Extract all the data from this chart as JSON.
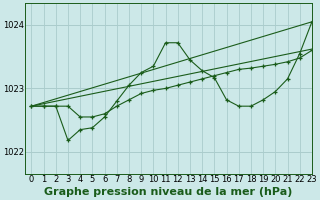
{
  "title": "Graphe pression niveau de la mer (hPa)",
  "background_color": "#cce8e8",
  "grid_color": "#aacccc",
  "line_color": "#1a5c1a",
  "xlim": [
    -0.5,
    23
  ],
  "ylim": [
    1021.65,
    1024.35
  ],
  "yticks": [
    1022,
    1023,
    1024
  ],
  "xticks": [
    0,
    1,
    2,
    3,
    4,
    5,
    6,
    7,
    8,
    9,
    10,
    11,
    12,
    13,
    14,
    15,
    16,
    17,
    18,
    19,
    20,
    21,
    22,
    23
  ],
  "trend1_x": [
    0,
    23
  ],
  "trend1_y": [
    1022.72,
    1023.62
  ],
  "trend2_x": [
    0,
    23
  ],
  "trend2_y": [
    1022.72,
    1024.05
  ],
  "series1_x": [
    0,
    1,
    2,
    3,
    4,
    5,
    6,
    7,
    8,
    9,
    10,
    11,
    12,
    13,
    14,
    15,
    16,
    17,
    18,
    19,
    20,
    21,
    22,
    23
  ],
  "series1_y": [
    1022.72,
    1022.72,
    1022.72,
    1022.72,
    1022.55,
    1022.55,
    1022.6,
    1022.72,
    1022.82,
    1022.92,
    1022.97,
    1023.0,
    1023.05,
    1023.1,
    1023.15,
    1023.2,
    1023.25,
    1023.3,
    1023.32,
    1023.35,
    1023.38,
    1023.42,
    1023.48,
    1023.6
  ],
  "series2_x": [
    0,
    1,
    2,
    3,
    4,
    5,
    6,
    7,
    8,
    9,
    10,
    11,
    12,
    13,
    14,
    15,
    16,
    17,
    18,
    19,
    20,
    21,
    22,
    23
  ],
  "series2_y": [
    1022.72,
    1022.72,
    1022.72,
    1022.18,
    1022.35,
    1022.38,
    1022.55,
    1022.8,
    1023.05,
    1023.25,
    1023.35,
    1023.72,
    1023.72,
    1023.45,
    1023.28,
    1023.17,
    1022.82,
    1022.72,
    1022.72,
    1022.82,
    1022.95,
    1023.15,
    1023.55,
    1024.05
  ],
  "title_fontsize": 8,
  "tick_fontsize": 6
}
